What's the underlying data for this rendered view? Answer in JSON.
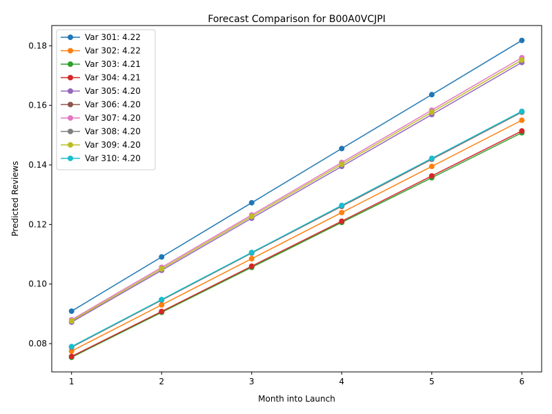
{
  "chart_data": {
    "type": "line",
    "title": "Forecast Comparison for B00A0VCJPI",
    "xlabel": "Month into Launch",
    "ylabel": "Predicted Reviews",
    "x": [
      1,
      2,
      3,
      4,
      5,
      6
    ],
    "xlim": [
      0.78,
      6.22
    ],
    "ylim": [
      0.0705,
      0.1868
    ],
    "xticks": [
      "1",
      "2",
      "3",
      "4",
      "5",
      "6"
    ],
    "yticks": [
      "0.08",
      "0.10",
      "0.12",
      "0.14",
      "0.16",
      "0.18"
    ],
    "ytick_values": [
      0.08,
      0.1,
      0.12,
      0.14,
      0.16,
      0.18
    ],
    "legend_position": "upper-left",
    "grid": false,
    "series": [
      {
        "name": "Var 301: 4.22",
        "color": "#1f77b4",
        "values": [
          0.0909,
          0.1091,
          0.1273,
          0.1455,
          0.1636,
          0.1818
        ]
      },
      {
        "name": "Var 302: 4.22",
        "color": "#ff7f0e",
        "values": [
          0.0775,
          0.093,
          0.1085,
          0.124,
          0.1395,
          0.155
        ]
      },
      {
        "name": "Var 303: 4.21",
        "color": "#2ca02c",
        "values": [
          0.0754,
          0.0905,
          0.1056,
          0.1207,
          0.1357,
          0.1508
        ]
      },
      {
        "name": "Var 304: 4.21",
        "color": "#d62728",
        "values": [
          0.0757,
          0.0908,
          0.106,
          0.1211,
          0.1363,
          0.1514
        ]
      },
      {
        "name": "Var 305: 4.20",
        "color": "#9467bd",
        "values": [
          0.0872,
          0.1046,
          0.1221,
          0.1395,
          0.1569,
          0.1744
        ]
      },
      {
        "name": "Var 306: 4.20",
        "color": "#8c564b",
        "values": [
          0.0788,
          0.0946,
          0.1104,
          0.1261,
          0.1419,
          0.1577
        ]
      },
      {
        "name": "Var 307: 4.20",
        "color": "#e377c2",
        "values": [
          0.088,
          0.1056,
          0.1232,
          0.1408,
          0.1584,
          0.176
        ]
      },
      {
        "name": "Var 308: 4.20",
        "color": "#7f7f7f",
        "values": [
          0.0789,
          0.0947,
          0.1105,
          0.1263,
          0.1421,
          0.1578
        ]
      },
      {
        "name": "Var 309: 4.20",
        "color": "#bcbd22",
        "values": [
          0.0876,
          0.1051,
          0.1227,
          0.1402,
          0.1577,
          0.1752
        ]
      },
      {
        "name": "Var 310: 4.20",
        "color": "#17becf",
        "values": [
          0.079,
          0.0948,
          0.1106,
          0.1264,
          0.1422,
          0.158
        ]
      }
    ]
  }
}
